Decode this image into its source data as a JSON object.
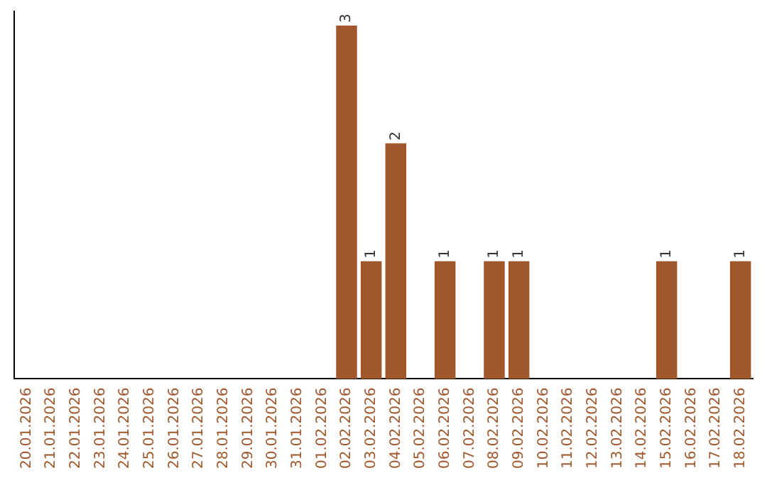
{
  "chart_data": {
    "type": "bar",
    "categories": [
      "20.01.2026",
      "21.01.2026",
      "22.01.2026",
      "23.01.2026",
      "24.01.2026",
      "25.01.2026",
      "26.01.2026",
      "27.01.2026",
      "28.01.2026",
      "29.01.2026",
      "30.01.2026",
      "31.01.2026",
      "01.02.2026",
      "02.02.2026",
      "03.02.2026",
      "04.02.2026",
      "05.02.2026",
      "06.02.2026",
      "07.02.2026",
      "08.02.2026",
      "09.02.2026",
      "10.02.2026",
      "11.02.2026",
      "12.02.2026",
      "13.02.2026",
      "14.02.2026",
      "15.02.2026",
      "16.02.2026",
      "17.02.2026",
      "18.02.2026"
    ],
    "values": [
      null,
      null,
      null,
      null,
      null,
      null,
      null,
      null,
      null,
      null,
      null,
      null,
      null,
      3,
      1,
      2,
      null,
      1,
      null,
      1,
      1,
      null,
      null,
      null,
      null,
      null,
      1,
      null,
      null,
      1
    ],
    "data_labels": true,
    "color": "#a0572b",
    "grid": false,
    "legend": false,
    "tick_labels": "x"
  }
}
